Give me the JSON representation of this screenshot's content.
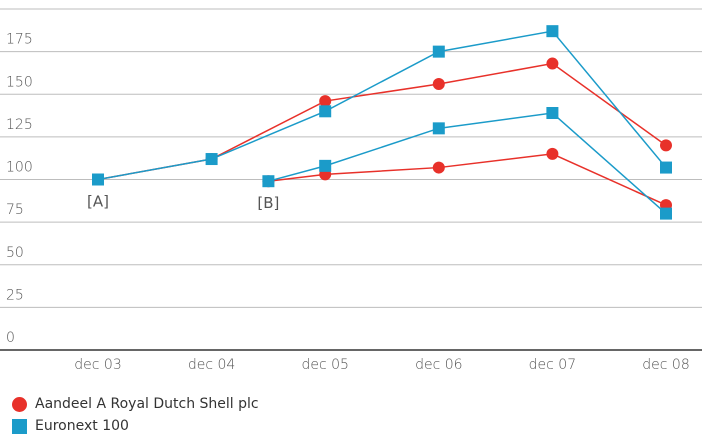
{
  "colors": {
    "shell": "#e8312a",
    "euronext": "#1b9bc9",
    "grid": "#bdbdbd",
    "axis": "#333333"
  },
  "chart_data": {
    "type": "line",
    "categories": [
      "dec 03",
      "dec 04",
      "dec 05",
      "dec 06",
      "dec 07",
      "dec 08"
    ],
    "yticks": [
      0,
      25,
      50,
      75,
      100,
      125,
      150,
      175
    ],
    "ylim": [
      0,
      200
    ],
    "grid": true,
    "legend_position": "bottom-left",
    "annotations": [
      {
        "text": "[A]",
        "x": 0,
        "y": 100
      },
      {
        "text": "[B]",
        "x": 1.5,
        "y": 99
      }
    ],
    "series": [
      {
        "name": "Aandeel A Royal Dutch Shell plc",
        "marker": "circle",
        "color": "#e8312a",
        "x": [
          0,
          1,
          2,
          3,
          4,
          5
        ],
        "values": [
          100,
          112,
          146,
          156,
          168,
          120
        ]
      },
      {
        "name": "Euronext 100",
        "marker": "square",
        "color": "#1b9bc9",
        "x": [
          0,
          1,
          2,
          3,
          4,
          5
        ],
        "values": [
          100,
          112,
          140,
          175,
          187,
          107
        ]
      },
      {
        "name": "Aandeel A Royal Dutch Shell plc",
        "marker": "circle",
        "color": "#e8312a",
        "x": [
          1.5,
          2,
          3,
          4,
          5
        ],
        "values": [
          99,
          103,
          107,
          115,
          85
        ]
      },
      {
        "name": "Euronext 100",
        "marker": "square",
        "color": "#1b9bc9",
        "x": [
          1.5,
          2,
          3,
          4,
          5
        ],
        "values": [
          99,
          108,
          130,
          139,
          80
        ]
      }
    ]
  },
  "legend": [
    {
      "label": "Aandeel A Royal Dutch Shell plc",
      "marker": "circle",
      "color": "#e8312a"
    },
    {
      "label": "Euronext 100",
      "marker": "square",
      "color": "#1b9bc9"
    }
  ]
}
